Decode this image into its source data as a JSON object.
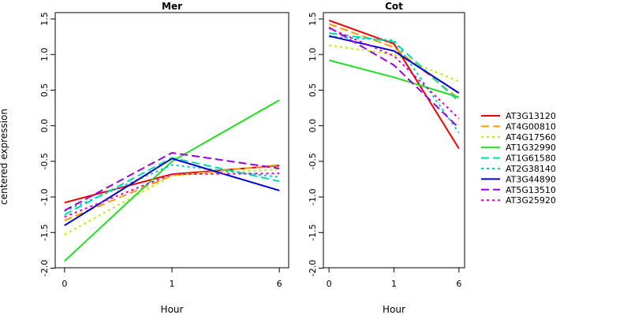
{
  "chart_data": {
    "type": "line",
    "ylabel": "centered expression",
    "xlabel": "Hour",
    "x_categories": [
      "0",
      "1",
      "6"
    ],
    "ylim": [
      -2.0,
      1.6
    ],
    "yticks": [
      "-2.0",
      "-1.5",
      "-1.0",
      "-0.5",
      "0.0",
      "0.5",
      "1.0",
      "1.5"
    ],
    "legend_position": "right",
    "series_styles": [
      {
        "name": "AT3G13120",
        "color": "#ee0000",
        "dash": "solid"
      },
      {
        "name": "AT4G00810",
        "color": "#ff9900",
        "dash": "dashed"
      },
      {
        "name": "AT4G17560",
        "color": "#bbee00",
        "dash": "dotted"
      },
      {
        "name": "AT1G32990",
        "color": "#22dd22",
        "dash": "solid"
      },
      {
        "name": "AT1G61580",
        "color": "#00ddaa",
        "dash": "dashed"
      },
      {
        "name": "AT2G38140",
        "color": "#00cccc",
        "dash": "dotted"
      },
      {
        "name": "AT3G44890",
        "color": "#0000cc",
        "dash": "solid"
      },
      {
        "name": "AT5G13510",
        "color": "#9900dd",
        "dash": "dashed"
      },
      {
        "name": "AT3G25920",
        "color": "#dd00cc",
        "dash": "dotted"
      }
    ],
    "panels": [
      {
        "title": "Mer",
        "series": [
          {
            "name": "AT3G13120",
            "values": [
              -1.08,
              -0.68,
              -0.56
            ]
          },
          {
            "name": "AT4G00810",
            "values": [
              -1.33,
              -0.7,
              -0.55
            ]
          },
          {
            "name": "AT4G17560",
            "values": [
              -1.53,
              -0.7,
              -0.61
            ]
          },
          {
            "name": "AT1G32990",
            "values": [
              -1.9,
              -0.5,
              0.36
            ]
          },
          {
            "name": "AT1G61580",
            "values": [
              -1.25,
              -0.45,
              -0.78
            ]
          },
          {
            "name": "AT2G38140",
            "values": [
              -1.2,
              -0.55,
              -0.72
            ]
          },
          {
            "name": "AT3G44890",
            "values": [
              -1.4,
              -0.46,
              -0.91
            ]
          },
          {
            "name": "AT5G13510",
            "values": [
              -1.19,
              -0.38,
              -0.6
            ]
          },
          {
            "name": "AT3G25920",
            "values": [
              -1.28,
              -0.68,
              -0.67
            ]
          }
        ]
      },
      {
        "title": "Cot",
        "series": [
          {
            "name": "AT3G13120",
            "values": [
              1.48,
              1.15,
              -0.32
            ]
          },
          {
            "name": "AT4G00810",
            "values": [
              1.43,
              1.1,
              0.38
            ]
          },
          {
            "name": "AT4G17560",
            "values": [
              1.13,
              1.0,
              0.62
            ]
          },
          {
            "name": "AT1G32990",
            "values": [
              0.92,
              0.68,
              0.4
            ]
          },
          {
            "name": "AT1G61580",
            "values": [
              1.3,
              1.18,
              0.34
            ]
          },
          {
            "name": "AT2G38140",
            "values": [
              1.25,
              1.2,
              -0.1
            ]
          },
          {
            "name": "AT3G44890",
            "values": [
              1.26,
              1.05,
              0.46
            ]
          },
          {
            "name": "AT5G13510",
            "values": [
              1.38,
              0.85,
              -0.03
            ]
          },
          {
            "name": "AT3G25920",
            "values": [
              1.37,
              0.98,
              0.1
            ]
          }
        ]
      }
    ]
  }
}
